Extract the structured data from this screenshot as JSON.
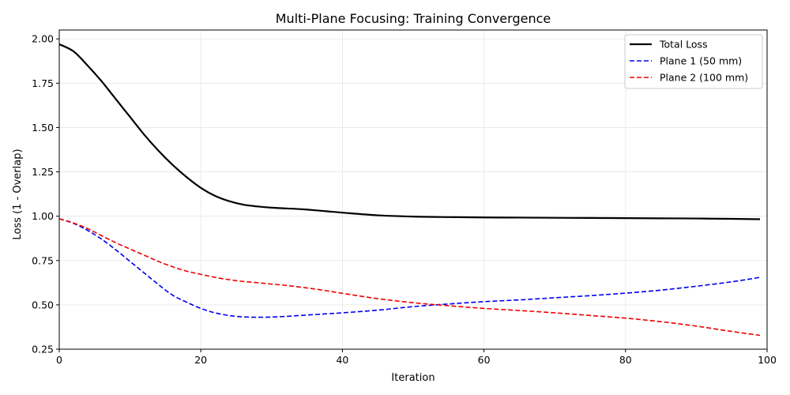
{
  "chart_data": {
    "type": "line",
    "title": "Multi-Plane Focusing: Training Convergence",
    "xlabel": "Iteration",
    "ylabel": "Loss (1 - Overlap)",
    "xlim": [
      0,
      100
    ],
    "ylim": [
      0.25,
      2.05
    ],
    "xticks": [
      0,
      20,
      40,
      60,
      80,
      100
    ],
    "xtick_labels": [
      "0",
      "20",
      "40",
      "60",
      "80",
      "100"
    ],
    "yticks": [
      0.25,
      0.5,
      0.75,
      1.0,
      1.25,
      1.5,
      1.75,
      2.0
    ],
    "ytick_labels": [
      "0.25",
      "0.50",
      "0.75",
      "1.00",
      "1.25",
      "1.50",
      "1.75",
      "2.00"
    ],
    "grid": true,
    "legend_position": "top-right",
    "x": [
      0,
      2,
      4,
      6,
      8,
      10,
      12,
      14,
      16,
      18,
      20,
      22,
      24,
      26,
      28,
      30,
      32,
      34,
      36,
      38,
      40,
      45,
      50,
      55,
      60,
      65,
      70,
      75,
      80,
      85,
      90,
      95,
      99
    ],
    "series": [
      {
        "name": "Total Loss",
        "color": "#000000",
        "style": "solid",
        "values": [
          1.97,
          1.93,
          1.85,
          1.76,
          1.66,
          1.56,
          1.46,
          1.37,
          1.29,
          1.22,
          1.16,
          1.115,
          1.085,
          1.065,
          1.055,
          1.048,
          1.044,
          1.04,
          1.034,
          1.027,
          1.02,
          1.005,
          0.998,
          0.995,
          0.993,
          0.992,
          0.991,
          0.99,
          0.989,
          0.988,
          0.987,
          0.985,
          0.983
        ]
      },
      {
        "name": "Plane 1 (50 mm)",
        "color": "#0000ee",
        "style": "dashed",
        "values": [
          0.985,
          0.96,
          0.92,
          0.87,
          0.81,
          0.745,
          0.68,
          0.615,
          0.555,
          0.515,
          0.48,
          0.455,
          0.44,
          0.432,
          0.43,
          0.431,
          0.435,
          0.44,
          0.445,
          0.45,
          0.455,
          0.47,
          0.49,
          0.505,
          0.518,
          0.528,
          0.54,
          0.552,
          0.566,
          0.583,
          0.605,
          0.63,
          0.655
        ]
      },
      {
        "name": "Plane 2 (100 mm)",
        "color": "#ee0000",
        "style": "dashed",
        "values": [
          0.985,
          0.962,
          0.93,
          0.89,
          0.85,
          0.815,
          0.78,
          0.745,
          0.715,
          0.69,
          0.672,
          0.655,
          0.642,
          0.632,
          0.625,
          0.617,
          0.61,
          0.6,
          0.59,
          0.578,
          0.565,
          0.535,
          0.512,
          0.495,
          0.48,
          0.468,
          0.455,
          0.44,
          0.425,
          0.405,
          0.38,
          0.35,
          0.328
        ]
      }
    ]
  }
}
